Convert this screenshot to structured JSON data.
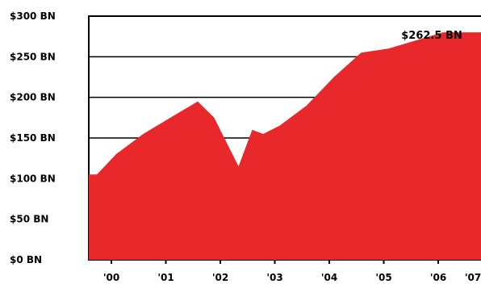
{
  "chart_data": {
    "type": "area",
    "title": "",
    "xlabel": "",
    "ylabel": "",
    "color": "#e8282a",
    "ylim": [
      0,
      300
    ],
    "y_ticks": [
      0,
      50,
      100,
      150,
      200,
      250,
      300
    ],
    "y_tick_labels": [
      "$0 BN",
      "$50 BN",
      "$100 BN",
      "$150 BN",
      "$200 BN",
      "$250 BN",
      "$300 BN"
    ],
    "grid": true,
    "x_ticks": [
      0,
      1,
      2,
      3,
      4,
      5,
      6,
      7
    ],
    "x_tick_labels": [
      "'00",
      "'01",
      "'02",
      "'03",
      "'04",
      "'05",
      "'06",
      "'07"
    ],
    "x": [
      0,
      0.15,
      0.5,
      1,
      1.5,
      2,
      2.3,
      2.75,
      3,
      3.2,
      3.5,
      4,
      4.5,
      5,
      5.5,
      6,
      6.5,
      7
    ],
    "values": [
      105,
      105,
      130,
      155,
      175,
      195,
      175,
      115,
      160,
      155,
      165,
      190,
      225,
      255,
      260,
      270,
      280,
      280
    ],
    "annotation": {
      "label": "$262.5 BN",
      "x": 6.3,
      "y": 262.5
    }
  }
}
